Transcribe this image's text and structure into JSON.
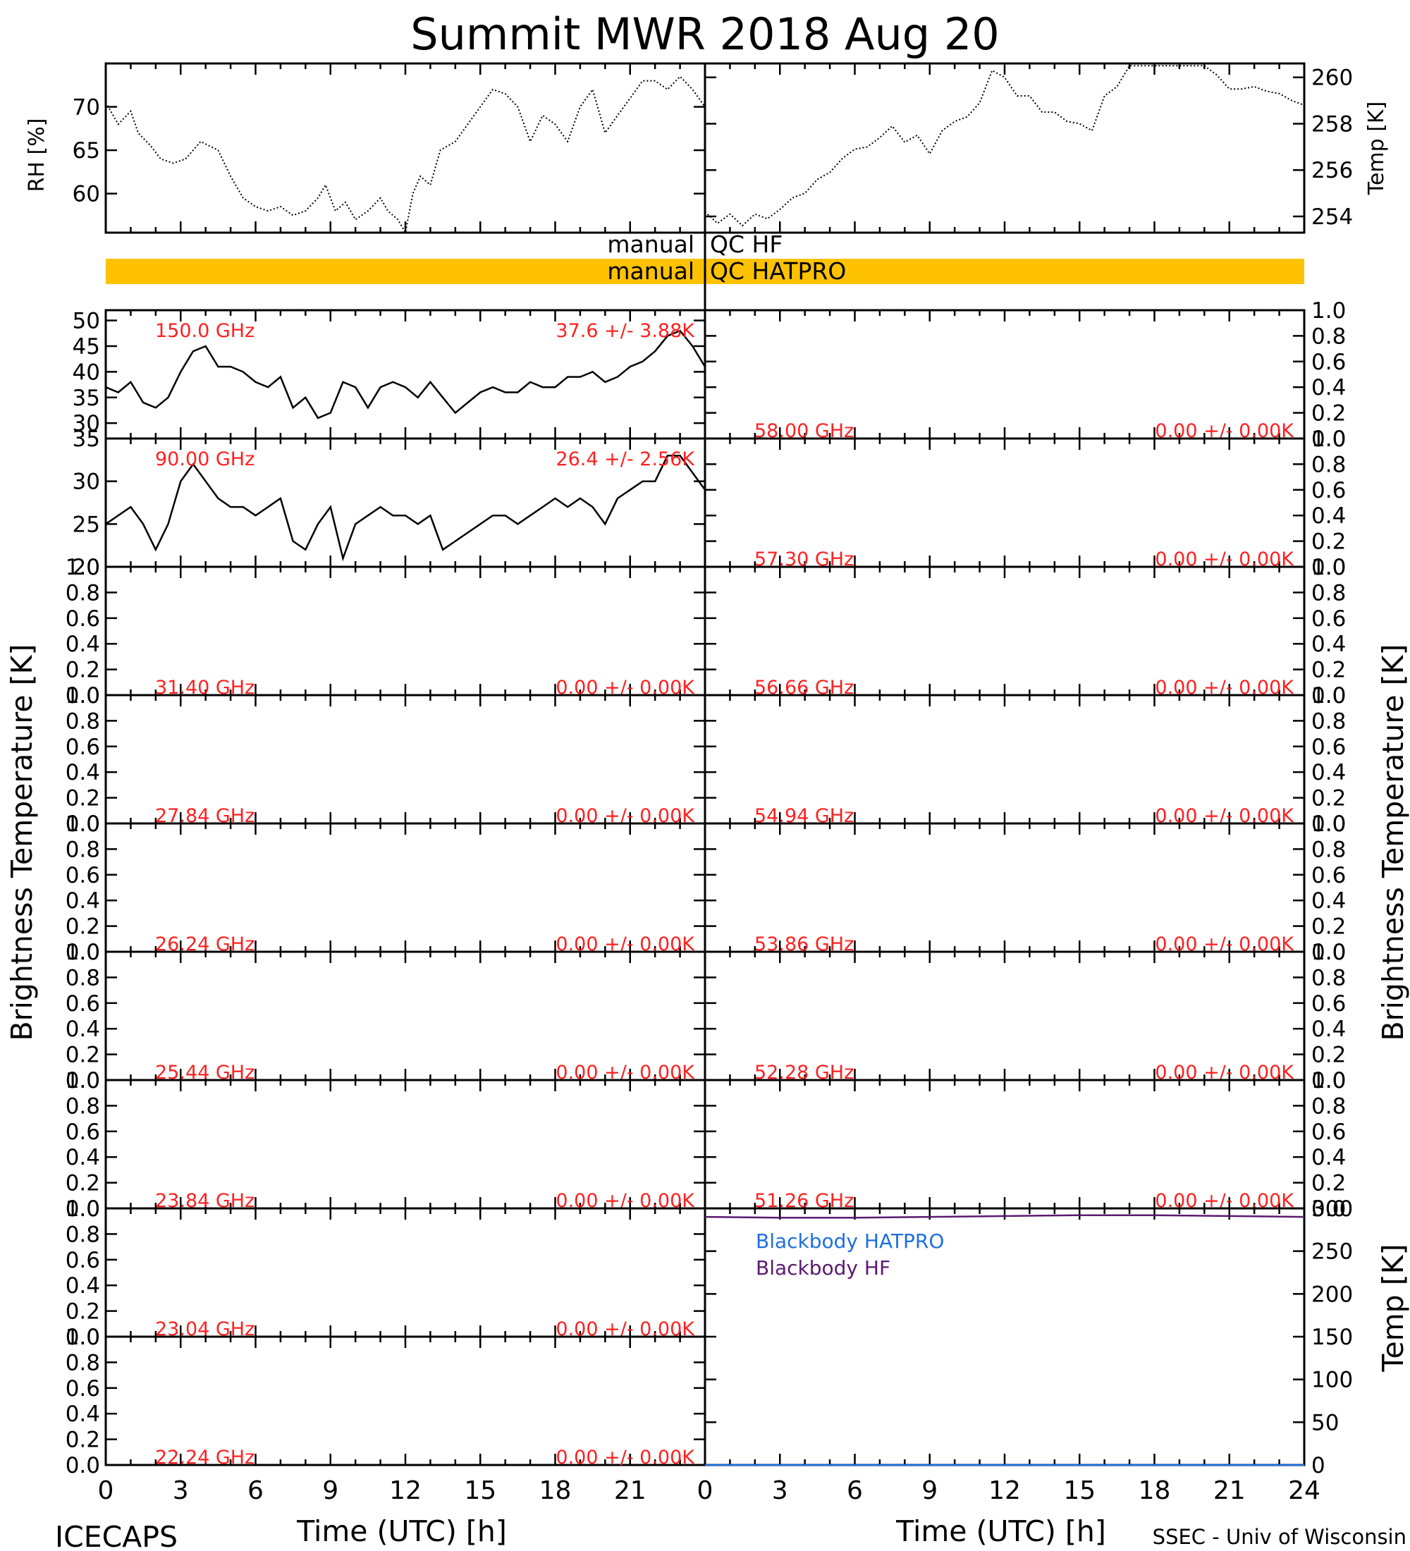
{
  "title": "Summit MWR 2018 Aug 20",
  "footer": {
    "left": "ICECAPS",
    "right": "SSEC - Univ of Wisconsin"
  },
  "qc": {
    "hf": {
      "left": "manual",
      "right": "QC HF"
    },
    "hatpro": {
      "left": "manual",
      "right": "QC HATPRO"
    },
    "hatpro_color": "#ffc200"
  },
  "colors": {
    "line": "#000000",
    "label": "#ff2020",
    "hatpro": "#1e6fe0",
    "hf": "#5a1a70",
    "qc_bar": "#ffc200"
  },
  "axes": {
    "time_label": "Time (UTC) [h]",
    "time_ticks": [
      "0",
      "3",
      "6",
      "9",
      "12",
      "15",
      "18",
      "21",
      "24"
    ],
    "left_time_ticks": [
      "0",
      "3",
      "6",
      "9",
      "12",
      "15",
      "18",
      "21"
    ],
    "rh_label": "RH [%]",
    "temp_label": "Temp [K]",
    "bt_label": "Brightness Temperature [K]",
    "bb_temp_label": "Temp [K]"
  },
  "chart_data": [
    {
      "type": "line",
      "panel": "rh",
      "ylabel": "RH [%]",
      "xlim": [
        0,
        24
      ],
      "ylim": [
        55.5,
        75
      ],
      "yticks": [
        "60",
        "65",
        "70"
      ],
      "series": [
        {
          "x": [
            0,
            0.5,
            1,
            1.3,
            1.8,
            2.2,
            2.7,
            3.2,
            3.8,
            4.5,
            5,
            5.5,
            6,
            6.5,
            7,
            7.5,
            8,
            8.5,
            8.8,
            9.2,
            9.6,
            10,
            10.5,
            11,
            11.3,
            11.7,
            12,
            12.3,
            12.6,
            13,
            13.4,
            14,
            14.5,
            15,
            15.5,
            16,
            16.5,
            17,
            17.5,
            18,
            18.5,
            19,
            19.5,
            20,
            20.5,
            21,
            21.5,
            22,
            22.5,
            23,
            23.5,
            24
          ],
          "y": [
            70.5,
            68,
            69.5,
            67,
            65.5,
            64,
            63.5,
            64,
            66,
            65,
            62,
            59.5,
            58.5,
            58,
            58.5,
            57.5,
            58,
            59.5,
            61,
            58,
            59,
            57,
            58,
            59.5,
            58,
            57,
            55.5,
            60,
            62,
            61,
            65,
            66,
            68,
            70,
            72,
            71.5,
            70,
            66,
            69,
            68,
            66,
            70,
            72,
            67,
            69,
            71,
            73,
            73,
            72,
            73.5,
            72,
            70
          ]
        }
      ]
    },
    {
      "type": "line",
      "panel": "temp",
      "ylabel": "Temp [K]",
      "xlim": [
        0,
        24
      ],
      "ylim": [
        253.3,
        260.6
      ],
      "yticks": [
        "254",
        "256",
        "258",
        "260"
      ],
      "series": [
        {
          "x": [
            0,
            0.5,
            1,
            1.5,
            2,
            2.5,
            3,
            3.5,
            4,
            4.5,
            5,
            5.5,
            6,
            6.5,
            7,
            7.5,
            8,
            8.5,
            9,
            9.5,
            10,
            10.5,
            11,
            11.5,
            12,
            12.5,
            13,
            13.5,
            14,
            14.5,
            15,
            15.5,
            16,
            16.5,
            17,
            17.5,
            18,
            18.5,
            19,
            19.5,
            20,
            20.5,
            21,
            21.5,
            22,
            22.5,
            23,
            23.5,
            24
          ],
          "y": [
            254.2,
            253.7,
            254.1,
            253.6,
            254.1,
            253.9,
            254.3,
            254.8,
            255,
            255.6,
            255.9,
            256.5,
            256.9,
            257,
            257.4,
            257.9,
            257.2,
            257.5,
            256.7,
            257.7,
            258.1,
            258.3,
            258.9,
            260.3,
            260,
            259.2,
            259.2,
            258.5,
            258.5,
            258.1,
            258,
            257.7,
            259.2,
            259.6,
            260.5,
            260.5,
            260.5,
            260.5,
            260.5,
            260.5,
            260.5,
            260.1,
            259.5,
            259.5,
            259.6,
            259.4,
            259.3,
            259,
            258.8
          ]
        }
      ]
    },
    {
      "type": "line",
      "panel": "bt-150",
      "label": "150.0 GHz",
      "stat": "37.6 +/-  3.88K",
      "xlim": [
        0,
        24
      ],
      "ylim": [
        27,
        52
      ],
      "yticks": [
        "30",
        "35",
        "40",
        "45",
        "50"
      ],
      "series": [
        {
          "x": [
            0,
            0.5,
            1,
            1.5,
            2,
            2.5,
            3,
            3.5,
            4,
            4.5,
            5,
            5.5,
            6,
            6.5,
            7,
            7.5,
            8,
            8.5,
            9,
            9.5,
            10,
            10.5,
            11,
            11.5,
            12,
            12.5,
            13,
            13.5,
            14,
            14.5,
            15,
            15.5,
            16,
            16.5,
            17,
            17.5,
            18,
            18.5,
            19,
            19.5,
            20,
            20.5,
            21,
            21.5,
            22,
            22.5,
            23,
            23.5,
            24
          ],
          "y": [
            37,
            36,
            38,
            34,
            33,
            35,
            40,
            44,
            45,
            41,
            41,
            40,
            38,
            37,
            39,
            33,
            35,
            31,
            32,
            38,
            37,
            33,
            37,
            38,
            37,
            35,
            38,
            35,
            32,
            34,
            36,
            37,
            36,
            36,
            38,
            37,
            37,
            39,
            39,
            40,
            38,
            39,
            41,
            42,
            44,
            47,
            48,
            45,
            41
          ]
        }
      ]
    },
    {
      "type": "line",
      "panel": "bt-90",
      "label": "90.00 GHz",
      "stat": "26.4 +/-  2.56K",
      "xlim": [
        0,
        24
      ],
      "ylim": [
        20,
        35
      ],
      "yticks": [
        "20",
        "25",
        "30",
        "35"
      ],
      "series": [
        {
          "x": [
            0,
            0.5,
            1,
            1.5,
            2,
            2.5,
            3,
            3.5,
            4,
            4.5,
            5,
            5.5,
            6,
            6.5,
            7,
            7.5,
            8,
            8.5,
            9,
            9.5,
            10,
            10.5,
            11,
            11.5,
            12,
            12.5,
            13,
            13.5,
            14,
            14.5,
            15,
            15.5,
            16,
            16.5,
            17,
            17.5,
            18,
            18.5,
            19,
            19.5,
            20,
            20.5,
            21,
            21.5,
            22,
            22.5,
            23,
            23.5,
            24
          ],
          "y": [
            25,
            26,
            27,
            25,
            22,
            25,
            30,
            32,
            30,
            28,
            27,
            27,
            26,
            27,
            28,
            23,
            22,
            25,
            27,
            21,
            25,
            26,
            27,
            26,
            26,
            25,
            26,
            22,
            23,
            24,
            25,
            26,
            26,
            25,
            26,
            27,
            28,
            27,
            28,
            27,
            25,
            28,
            29,
            30,
            30,
            33,
            33,
            31,
            29
          ]
        }
      ]
    },
    {
      "type": "line",
      "panel": "bt",
      "label": "31.40 GHz",
      "stat": "0.00 +/-  0.00K",
      "ylim": [
        0,
        1
      ],
      "yticks": [
        "0.0",
        "0.2",
        "0.4",
        "0.6",
        "0.8",
        "1.0"
      ],
      "series": []
    },
    {
      "type": "line",
      "panel": "bt",
      "label": "27.84 GHz",
      "stat": "0.00 +/-  0.00K",
      "ylim": [
        0,
        1
      ],
      "yticks": [
        "0.0",
        "0.2",
        "0.4",
        "0.6",
        "0.8",
        "1.0"
      ],
      "series": []
    },
    {
      "type": "line",
      "panel": "bt",
      "label": "26.24 GHz",
      "stat": "0.00 +/-  0.00K",
      "ylim": [
        0,
        1
      ],
      "yticks": [
        "0.0",
        "0.2",
        "0.4",
        "0.6",
        "0.8",
        "1.0"
      ],
      "series": []
    },
    {
      "type": "line",
      "panel": "bt",
      "label": "25.44 GHz",
      "stat": "0.00 +/-  0.00K",
      "ylim": [
        0,
        1
      ],
      "yticks": [
        "0.0",
        "0.2",
        "0.4",
        "0.6",
        "0.8",
        "1.0"
      ],
      "series": []
    },
    {
      "type": "line",
      "panel": "bt",
      "label": "23.84 GHz",
      "stat": "0.00 +/-  0.00K",
      "ylim": [
        0,
        1
      ],
      "yticks": [
        "0.0",
        "0.2",
        "0.4",
        "0.6",
        "0.8",
        "1.0"
      ],
      "series": []
    },
    {
      "type": "line",
      "panel": "bt",
      "label": "23.04 GHz",
      "stat": "0.00 +/-  0.00K",
      "ylim": [
        0,
        1
      ],
      "yticks": [
        "0.0",
        "0.2",
        "0.4",
        "0.6",
        "0.8",
        "1.0"
      ],
      "series": []
    },
    {
      "type": "line",
      "panel": "bt",
      "label": "22.24 GHz",
      "stat": "0.00 +/-  0.00K",
      "ylim": [
        0,
        1
      ],
      "yticks": [
        "0.0",
        "0.2",
        "0.4",
        "0.6",
        "0.8",
        "1.0"
      ],
      "series": []
    },
    {
      "type": "line",
      "panel": "bt",
      "label": "58.00 GHz",
      "stat": "0.00 +/-  0.00K",
      "ylim": [
        0,
        1
      ],
      "yticks": [
        "0.0",
        "0.2",
        "0.4",
        "0.6",
        "0.8",
        "1.0"
      ],
      "series": []
    },
    {
      "type": "line",
      "panel": "bt",
      "label": "57.30 GHz",
      "stat": "0.00 +/-  0.00K",
      "ylim": [
        0,
        1
      ],
      "yticks": [
        "0.0",
        "0.2",
        "0.4",
        "0.6",
        "0.8",
        "1.0"
      ],
      "series": []
    },
    {
      "type": "line",
      "panel": "bt",
      "label": "56.66 GHz",
      "stat": "0.00 +/-  0.00K",
      "ylim": [
        0,
        1
      ],
      "yticks": [
        "0.0",
        "0.2",
        "0.4",
        "0.6",
        "0.8",
        "1.0"
      ],
      "series": []
    },
    {
      "type": "line",
      "panel": "bt",
      "label": "54.94 GHz",
      "stat": "0.00 +/-  0.00K",
      "ylim": [
        0,
        1
      ],
      "yticks": [
        "0.0",
        "0.2",
        "0.4",
        "0.6",
        "0.8",
        "1.0"
      ],
      "series": []
    },
    {
      "type": "line",
      "panel": "bt",
      "label": "53.86 GHz",
      "stat": "0.00 +/-  0.00K",
      "ylim": [
        0,
        1
      ],
      "yticks": [
        "0.0",
        "0.2",
        "0.4",
        "0.6",
        "0.8",
        "1.0"
      ],
      "series": []
    },
    {
      "type": "line",
      "panel": "bt",
      "label": "52.28 GHz",
      "stat": "0.00 +/-  0.00K",
      "ylim": [
        0,
        1
      ],
      "yticks": [
        "0.0",
        "0.2",
        "0.4",
        "0.6",
        "0.8",
        "1.0"
      ],
      "series": []
    },
    {
      "type": "line",
      "panel": "bt",
      "label": "51.26 GHz",
      "stat": "0.00 +/-  0.00K",
      "ylim": [
        0,
        1
      ],
      "yticks": [
        "0.0",
        "0.2",
        "0.4",
        "0.6",
        "0.8",
        "1.0"
      ],
      "series": []
    },
    {
      "type": "line",
      "panel": "blackbody",
      "ylabel": "Temp [K]",
      "xlim": [
        0,
        24
      ],
      "ylim": [
        0,
        300
      ],
      "yticks": [
        "0",
        "50",
        "100",
        "150",
        "200",
        "250",
        "300"
      ],
      "legend": [
        "Blackbody HATPRO",
        "Blackbody HF"
      ],
      "series": [
        {
          "name": "Blackbody HATPRO",
          "x": [
            0,
            24
          ],
          "y": [
            0,
            0
          ]
        },
        {
          "name": "Blackbody HF",
          "x": [
            0,
            3,
            6,
            9,
            12,
            15,
            18,
            21,
            24
          ],
          "y": [
            290,
            289,
            289,
            290,
            291,
            292,
            292,
            291,
            290
          ]
        }
      ]
    }
  ]
}
